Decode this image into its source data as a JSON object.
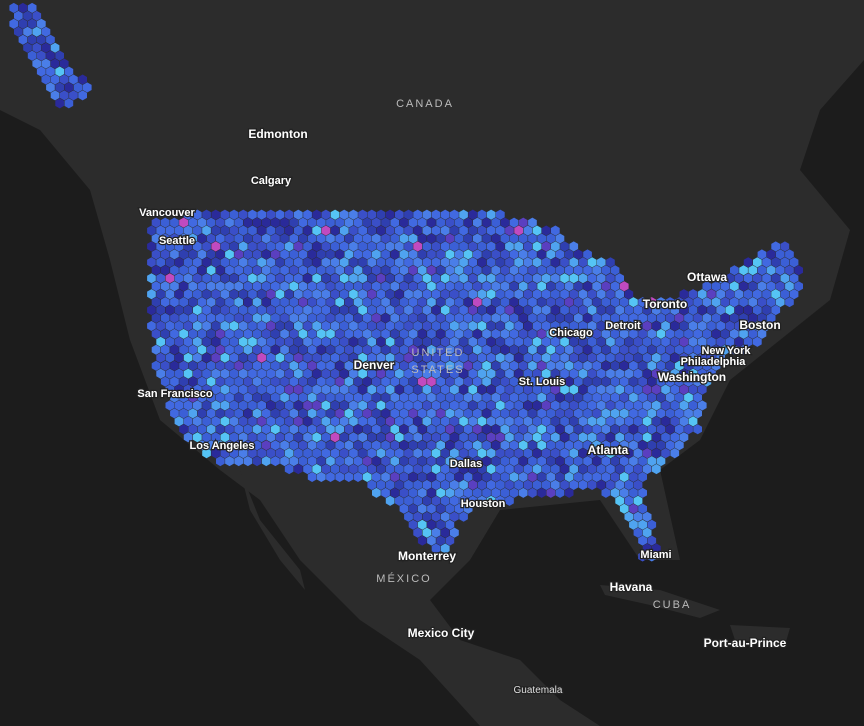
{
  "countries": [
    "CANADA",
    "UNITED",
    "STATES",
    "MÉXICO",
    "CUBA"
  ],
  "cities": [
    "Edmonton",
    "Calgary",
    "Vancouver",
    "Seattle",
    "Ottawa",
    "Toronto",
    "Detroit",
    "Chicago",
    "Boston",
    "New York",
    "Philadelphia",
    "Washington",
    "Denver",
    "St. Louis",
    "San Francisco",
    "Los Angeles",
    "Dallas",
    "Atlanta",
    "Houston",
    "Miami",
    "Monterrey",
    "Havana",
    "Mexico City",
    "Port-au-Prince",
    "Guatemala"
  ]
}
